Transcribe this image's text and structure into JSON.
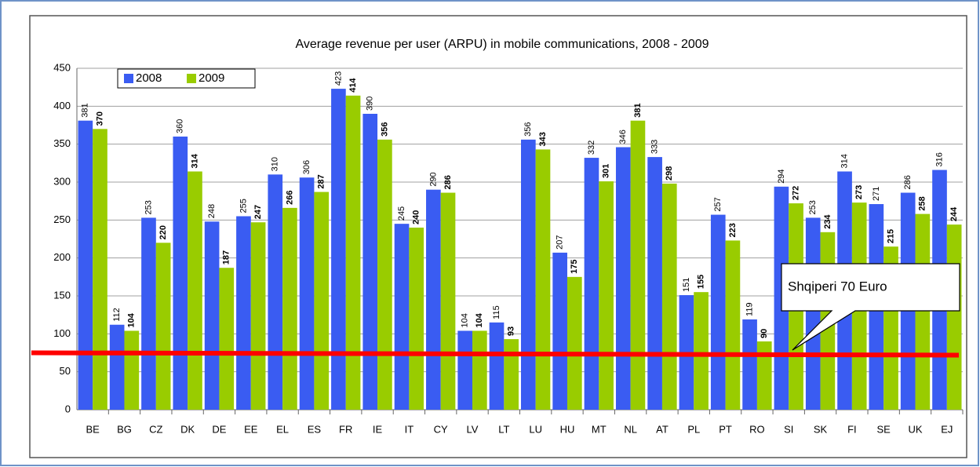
{
  "chart_data": {
    "type": "bar",
    "title": "Average revenue per user (ARPU) in mobile communications, 2008 - 2009",
    "categories": [
      "BE",
      "BG",
      "CZ",
      "DK",
      "DE",
      "EE",
      "EL",
      "ES",
      "FR",
      "IE",
      "IT",
      "CY",
      "LV",
      "LT",
      "LU",
      "HU",
      "MT",
      "NL",
      "AT",
      "PL",
      "PT",
      "RO",
      "SI",
      "SK",
      "FI",
      "SE",
      "UK",
      "EJ"
    ],
    "series": [
      {
        "name": "2008",
        "color": "#3a5cf2",
        "values": [
          381,
          112,
          253,
          360,
          248,
          255,
          310,
          306,
          423,
          390,
          245,
          290,
          104,
          115,
          356,
          207,
          332,
          346,
          333,
          151,
          257,
          119,
          294,
          253,
          314,
          271,
          286,
          316
        ]
      },
      {
        "name": "2009",
        "color": "#99cc00",
        "values": [
          370,
          104,
          220,
          314,
          187,
          247,
          266,
          287,
          414,
          356,
          240,
          286,
          104,
          93,
          343,
          175,
          301,
          381,
          298,
          155,
          223,
          90,
          272,
          234,
          273,
          215,
          258,
          244
        ]
      }
    ],
    "ylim": [
      0,
      450
    ],
    "yticks": [
      0,
      50,
      100,
      150,
      200,
      250,
      300,
      350,
      400,
      450
    ],
    "grid": true,
    "reference_line": {
      "value": 74,
      "color": "#ff0000"
    },
    "annotation": "Shqiperi 70 Euro"
  }
}
